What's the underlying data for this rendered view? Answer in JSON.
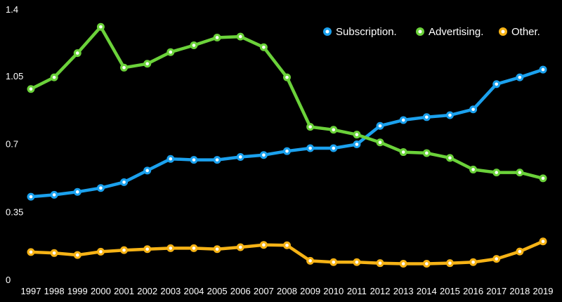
{
  "chart_data": {
    "type": "line",
    "x": [
      "1997",
      "1998",
      "1999",
      "2000",
      "2001",
      "2002",
      "2003",
      "2004",
      "2005",
      "2006",
      "2007",
      "2008",
      "2009",
      "2010",
      "2011",
      "2012",
      "2013",
      "2014",
      "2015",
      "2016",
      "2017",
      "2018",
      "2019"
    ],
    "ylim": [
      0,
      1.4
    ],
    "yticks": [
      "0",
      "0.35",
      "0.7",
      "1.05",
      "1.4"
    ],
    "grid": false,
    "legend_position": "top-right",
    "series": [
      {
        "name": "Subscription.",
        "color": "#1ba1ee",
        "values": [
          0.43,
          0.44,
          0.455,
          0.475,
          0.505,
          0.565,
          0.625,
          0.62,
          0.62,
          0.635,
          0.645,
          0.665,
          0.68,
          0.68,
          0.7,
          0.795,
          0.825,
          0.84,
          0.85,
          0.88,
          1.01,
          1.045,
          1.085
        ]
      },
      {
        "name": "Advertising.",
        "color": "#6bd23a",
        "values": [
          0.985,
          1.045,
          1.17,
          1.305,
          1.095,
          1.115,
          1.175,
          1.21,
          1.25,
          1.255,
          1.2,
          1.045,
          0.79,
          0.775,
          0.75,
          0.71,
          0.66,
          0.655,
          0.63,
          0.57,
          0.555,
          0.555,
          0.525
        ]
      },
      {
        "name": "Other.",
        "color": "#f6b316",
        "values": [
          0.145,
          0.14,
          0.13,
          0.147,
          0.155,
          0.16,
          0.165,
          0.165,
          0.16,
          0.17,
          0.182,
          0.18,
          0.1,
          0.093,
          0.093,
          0.088,
          0.085,
          0.085,
          0.088,
          0.093,
          0.11,
          0.148,
          0.2
        ]
      }
    ]
  }
}
